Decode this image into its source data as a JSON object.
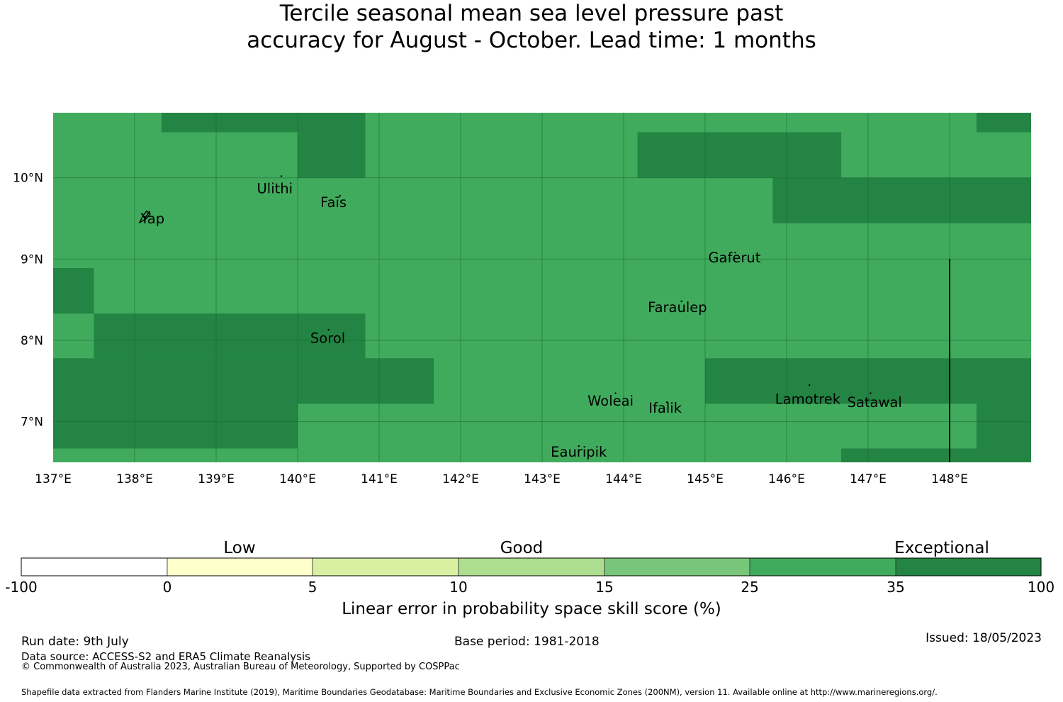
{
  "title": {
    "line1": "Tercile seasonal mean sea level pressure past",
    "line2": "accuracy for August - October. Lead time: 1 months"
  },
  "map": {
    "lon_range": [
      137,
      149
    ],
    "lat_range": [
      6.5,
      10.8
    ],
    "lon_labels": [
      "137°E",
      "138°E",
      "139°E",
      "140°E",
      "141°E",
      "142°E",
      "143°E",
      "144°E",
      "145°E",
      "146°E",
      "147°E",
      "148°E"
    ],
    "lat_labels": [
      "10°N",
      "9°N",
      "8°N",
      "7°N"
    ],
    "colors": {
      "good_high": "#41ab5d",
      "exceptional": "#238443",
      "grid": "#1a6b33"
    },
    "cells": [
      {
        "lon0": 138.33,
        "lon1": 140.83,
        "lat0": 10.56,
        "lat1": 10.8,
        "class": "exceptional"
      },
      {
        "lon0": 140.0,
        "lon1": 140.83,
        "lat0": 10.0,
        "lat1": 10.56,
        "class": "exceptional"
      },
      {
        "lon0": 144.17,
        "lon1": 146.67,
        "lat0": 10.0,
        "lat1": 10.56,
        "class": "exceptional"
      },
      {
        "lon0": 145.83,
        "lon1": 149.0,
        "lat0": 9.44,
        "lat1": 10.0,
        "class": "exceptional"
      },
      {
        "lon0": 148.33,
        "lon1": 149.0,
        "lat0": 10.56,
        "lat1": 10.8,
        "class": "exceptional"
      },
      {
        "lon0": 137.0,
        "lon1": 137.5,
        "lat0": 8.33,
        "lat1": 8.89,
        "class": "exceptional"
      },
      {
        "lon0": 137.5,
        "lon1": 140.83,
        "lat0": 7.78,
        "lat1": 8.33,
        "class": "exceptional"
      },
      {
        "lon0": 137.0,
        "lon1": 141.67,
        "lat0": 7.22,
        "lat1": 7.78,
        "class": "exceptional"
      },
      {
        "lon0": 137.0,
        "lon1": 140.0,
        "lat0": 6.67,
        "lat1": 7.22,
        "class": "exceptional"
      },
      {
        "lon0": 145.0,
        "lon1": 149.0,
        "lat0": 7.22,
        "lat1": 7.78,
        "class": "exceptional"
      },
      {
        "lon0": 148.33,
        "lon1": 149.0,
        "lat0": 6.5,
        "lat1": 7.22,
        "class": "exceptional"
      },
      {
        "lon0": 146.67,
        "lon1": 148.33,
        "lat0": 6.5,
        "lat1": 6.67,
        "class": "exceptional"
      }
    ],
    "places": [
      {
        "name": "Ulithi",
        "lon": 139.72,
        "lat": 9.87
      },
      {
        "name": "Faīs",
        "lon": 140.44,
        "lat": 9.7
      },
      {
        "name": "Yap",
        "lon": 138.22,
        "lat": 9.5
      },
      {
        "name": "Gaferut",
        "lon": 145.36,
        "lat": 9.02
      },
      {
        "name": "Faraulep",
        "lon": 144.66,
        "lat": 8.41
      },
      {
        "name": "Sorol",
        "lon": 140.37,
        "lat": 8.03
      },
      {
        "name": "Woleai",
        "lon": 143.84,
        "lat": 7.26
      },
      {
        "name": "Ifalik",
        "lon": 144.51,
        "lat": 7.17
      },
      {
        "name": "Lamotrek",
        "lon": 146.26,
        "lat": 7.28
      },
      {
        "name": "Satawal",
        "lon": 147.08,
        "lat": 7.24
      },
      {
        "name": "Eauripik",
        "lon": 143.45,
        "lat": 6.63
      }
    ]
  },
  "colorbar": {
    "labels": [
      "Low",
      "Good",
      "Exceptional"
    ],
    "ticks": [
      "-100",
      "0",
      "5",
      "10",
      "15",
      "25",
      "35",
      "100"
    ],
    "colors": [
      "#ffffff",
      "#ffffcc",
      "#d9f0a3",
      "#addd8e",
      "#78c679",
      "#41ab5d",
      "#238443"
    ],
    "title": "Linear error in probability space skill score (%)"
  },
  "footer": {
    "run_date": "Run date: 9th July",
    "base_period": "Base period: 1981-2018",
    "issued": "Issued: 18/05/2023",
    "data_source": "Data source: ACCESS-S2 and ERA5 Climate Reanalysis",
    "copyright": "© Commonwealth of Australia 2023, Australian Bureau of Meteorology, Supported by COSPPac",
    "shapefile": "Shapefile data extracted from Flanders Marine Institute (2019), Maritime Boundaries Geodatabase: Maritime Boundaries and Exclusive Economic Zones (200NM), version 11. Available online at http://www.marineregions.org/."
  }
}
